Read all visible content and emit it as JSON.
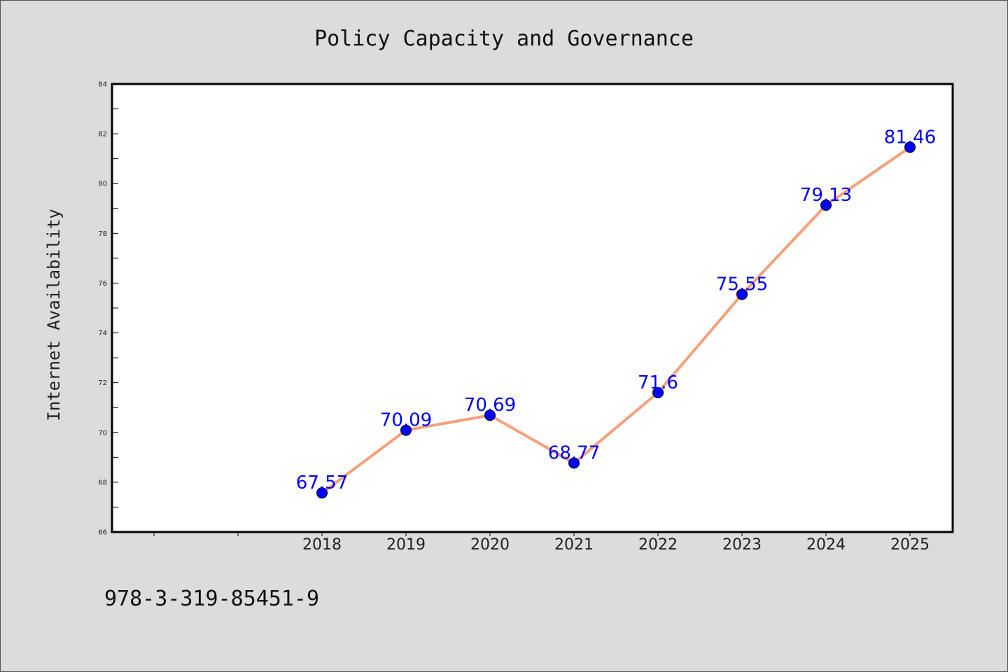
{
  "chart_data": {
    "type": "line",
    "title": "Policy Capacity and Governance",
    "xlabel": "",
    "ylabel": "Internet Availability",
    "categories": [
      "2018",
      "2019",
      "2020",
      "2021",
      "2022",
      "2023",
      "2024",
      "2025"
    ],
    "series": [
      {
        "values": [
          67.57,
          70.09,
          70.69,
          68.77,
          71.6,
          75.55,
          79.13,
          81.46
        ],
        "data_labels": [
          "67.57",
          "70.09",
          "70.69",
          "68.77",
          "71.6",
          "75.55",
          "79.13",
          "81.46"
        ],
        "line_color": "#f4a07a",
        "marker_color": "#0000ff"
      }
    ],
    "ylim": [
      66,
      84
    ],
    "yticks": [
      66,
      68,
      70,
      72,
      74,
      76,
      78,
      80,
      82,
      84
    ],
    "grid": false,
    "legend": "none"
  },
  "footnote": "978-3-319-85451-9"
}
